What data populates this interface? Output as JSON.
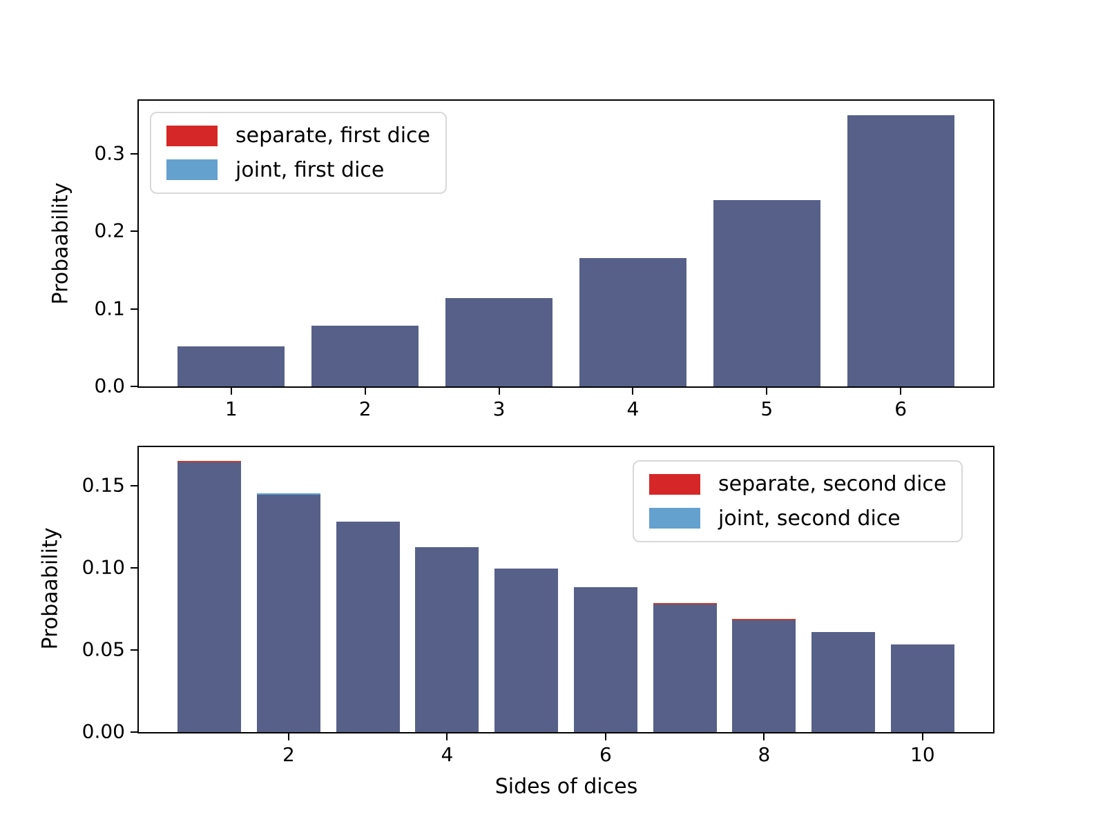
{
  "colors": {
    "bar_overlap": "#566089",
    "separate_red": "#d62728",
    "joint_blue": "#64a1cf",
    "cap_red": "#c23b32",
    "cap_blue": "#5aa2d0",
    "axis": "#000000",
    "legend_border": "#d8d8d8",
    "background": "#ffffff"
  },
  "chart_data": [
    {
      "type": "bar",
      "subplot": "top",
      "title": "",
      "xlabel": "",
      "ylabel": "Probaability",
      "categories": [
        1,
        2,
        3,
        4,
        5,
        6
      ],
      "series": [
        {
          "name": "separate, first dice",
          "color_key": "separate_red",
          "values": [
            0.052,
            0.078,
            0.114,
            0.166,
            0.24,
            0.35
          ]
        },
        {
          "name": "joint, first dice",
          "color_key": "joint_blue",
          "values": [
            0.052,
            0.078,
            0.114,
            0.166,
            0.24,
            0.35
          ]
        }
      ],
      "bar_width_fraction": 0.8,
      "xticks": [
        1,
        2,
        3,
        4,
        5,
        6
      ],
      "xtick_labels": [
        "1",
        "2",
        "3",
        "4",
        "5",
        "6"
      ],
      "yticks": [
        0.0,
        0.1,
        0.2,
        0.3
      ],
      "ytick_labels": [
        "0.0",
        "0.1",
        "0.2",
        "0.3"
      ],
      "xlim": [
        0.31,
        6.69
      ],
      "ylim": [
        0,
        0.3686
      ],
      "grid": false,
      "legend": {
        "position": "upper-left",
        "entries": [
          "separate, first dice",
          "joint, first dice"
        ]
      }
    },
    {
      "type": "bar",
      "subplot": "bottom",
      "title": "",
      "xlabel": "Sides of dices",
      "ylabel": "Probaability",
      "categories": [
        1,
        2,
        3,
        4,
        5,
        6,
        7,
        8,
        9,
        10
      ],
      "series": [
        {
          "name": "separate, second dice",
          "color_key": "separate_red",
          "values": [
            0.1653,
            0.1448,
            0.128,
            0.1128,
            0.0996,
            0.0881,
            0.0785,
            0.069,
            0.0609,
            0.0535
          ]
        },
        {
          "name": "joint, second dice",
          "color_key": "joint_blue",
          "values": [
            0.1645,
            0.1455,
            0.128,
            0.1128,
            0.0996,
            0.0881,
            0.0777,
            0.0682,
            0.0609,
            0.0535
          ]
        }
      ],
      "bar_width_fraction": 0.8,
      "xticks": [
        2,
        4,
        6,
        8,
        10
      ],
      "xtick_labels": [
        "2",
        "4",
        "6",
        "8",
        "10"
      ],
      "yticks": [
        0.0,
        0.05,
        0.1,
        0.15
      ],
      "ytick_labels": [
        "0.00",
        "0.05",
        "0.10",
        "0.15"
      ],
      "xlim": [
        0.11,
        10.89
      ],
      "ylim": [
        0,
        0.1736
      ],
      "grid": false,
      "legend": {
        "position": "upper-right",
        "entries": [
          "separate, second dice",
          "joint, second dice"
        ]
      }
    }
  ]
}
